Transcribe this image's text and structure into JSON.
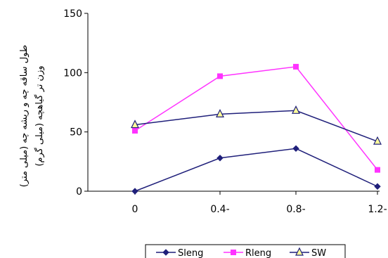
{
  "chart_data": {
    "type": "line",
    "categories": [
      "0",
      "0.4-",
      "0.8-",
      "1.2-"
    ],
    "ylim": [
      0,
      150
    ],
    "yticks": [
      "0",
      "50",
      "100",
      "150"
    ],
    "ylabel_lines": [
      "طول ساقه چه و ریشه چه (میلی متر)",
      "وزن تر گیاهچه (میلی گرم)"
    ],
    "xlabel": "",
    "title": "",
    "grid": false,
    "legend_position": "bottom",
    "series": [
      {
        "name": "Sleng",
        "values": [
          0,
          28,
          36,
          4
        ],
        "color": "#1f1f7a",
        "marker": "diamond"
      },
      {
        "name": "Rleng",
        "values": [
          51,
          97,
          105,
          18
        ],
        "color": "#ff33ff",
        "marker": "square"
      },
      {
        "name": "SW",
        "values": [
          56,
          65,
          68,
          42
        ],
        "color": "#1f1f7a",
        "marker": "triangle",
        "marker_fill": "#ffff99"
      }
    ]
  }
}
